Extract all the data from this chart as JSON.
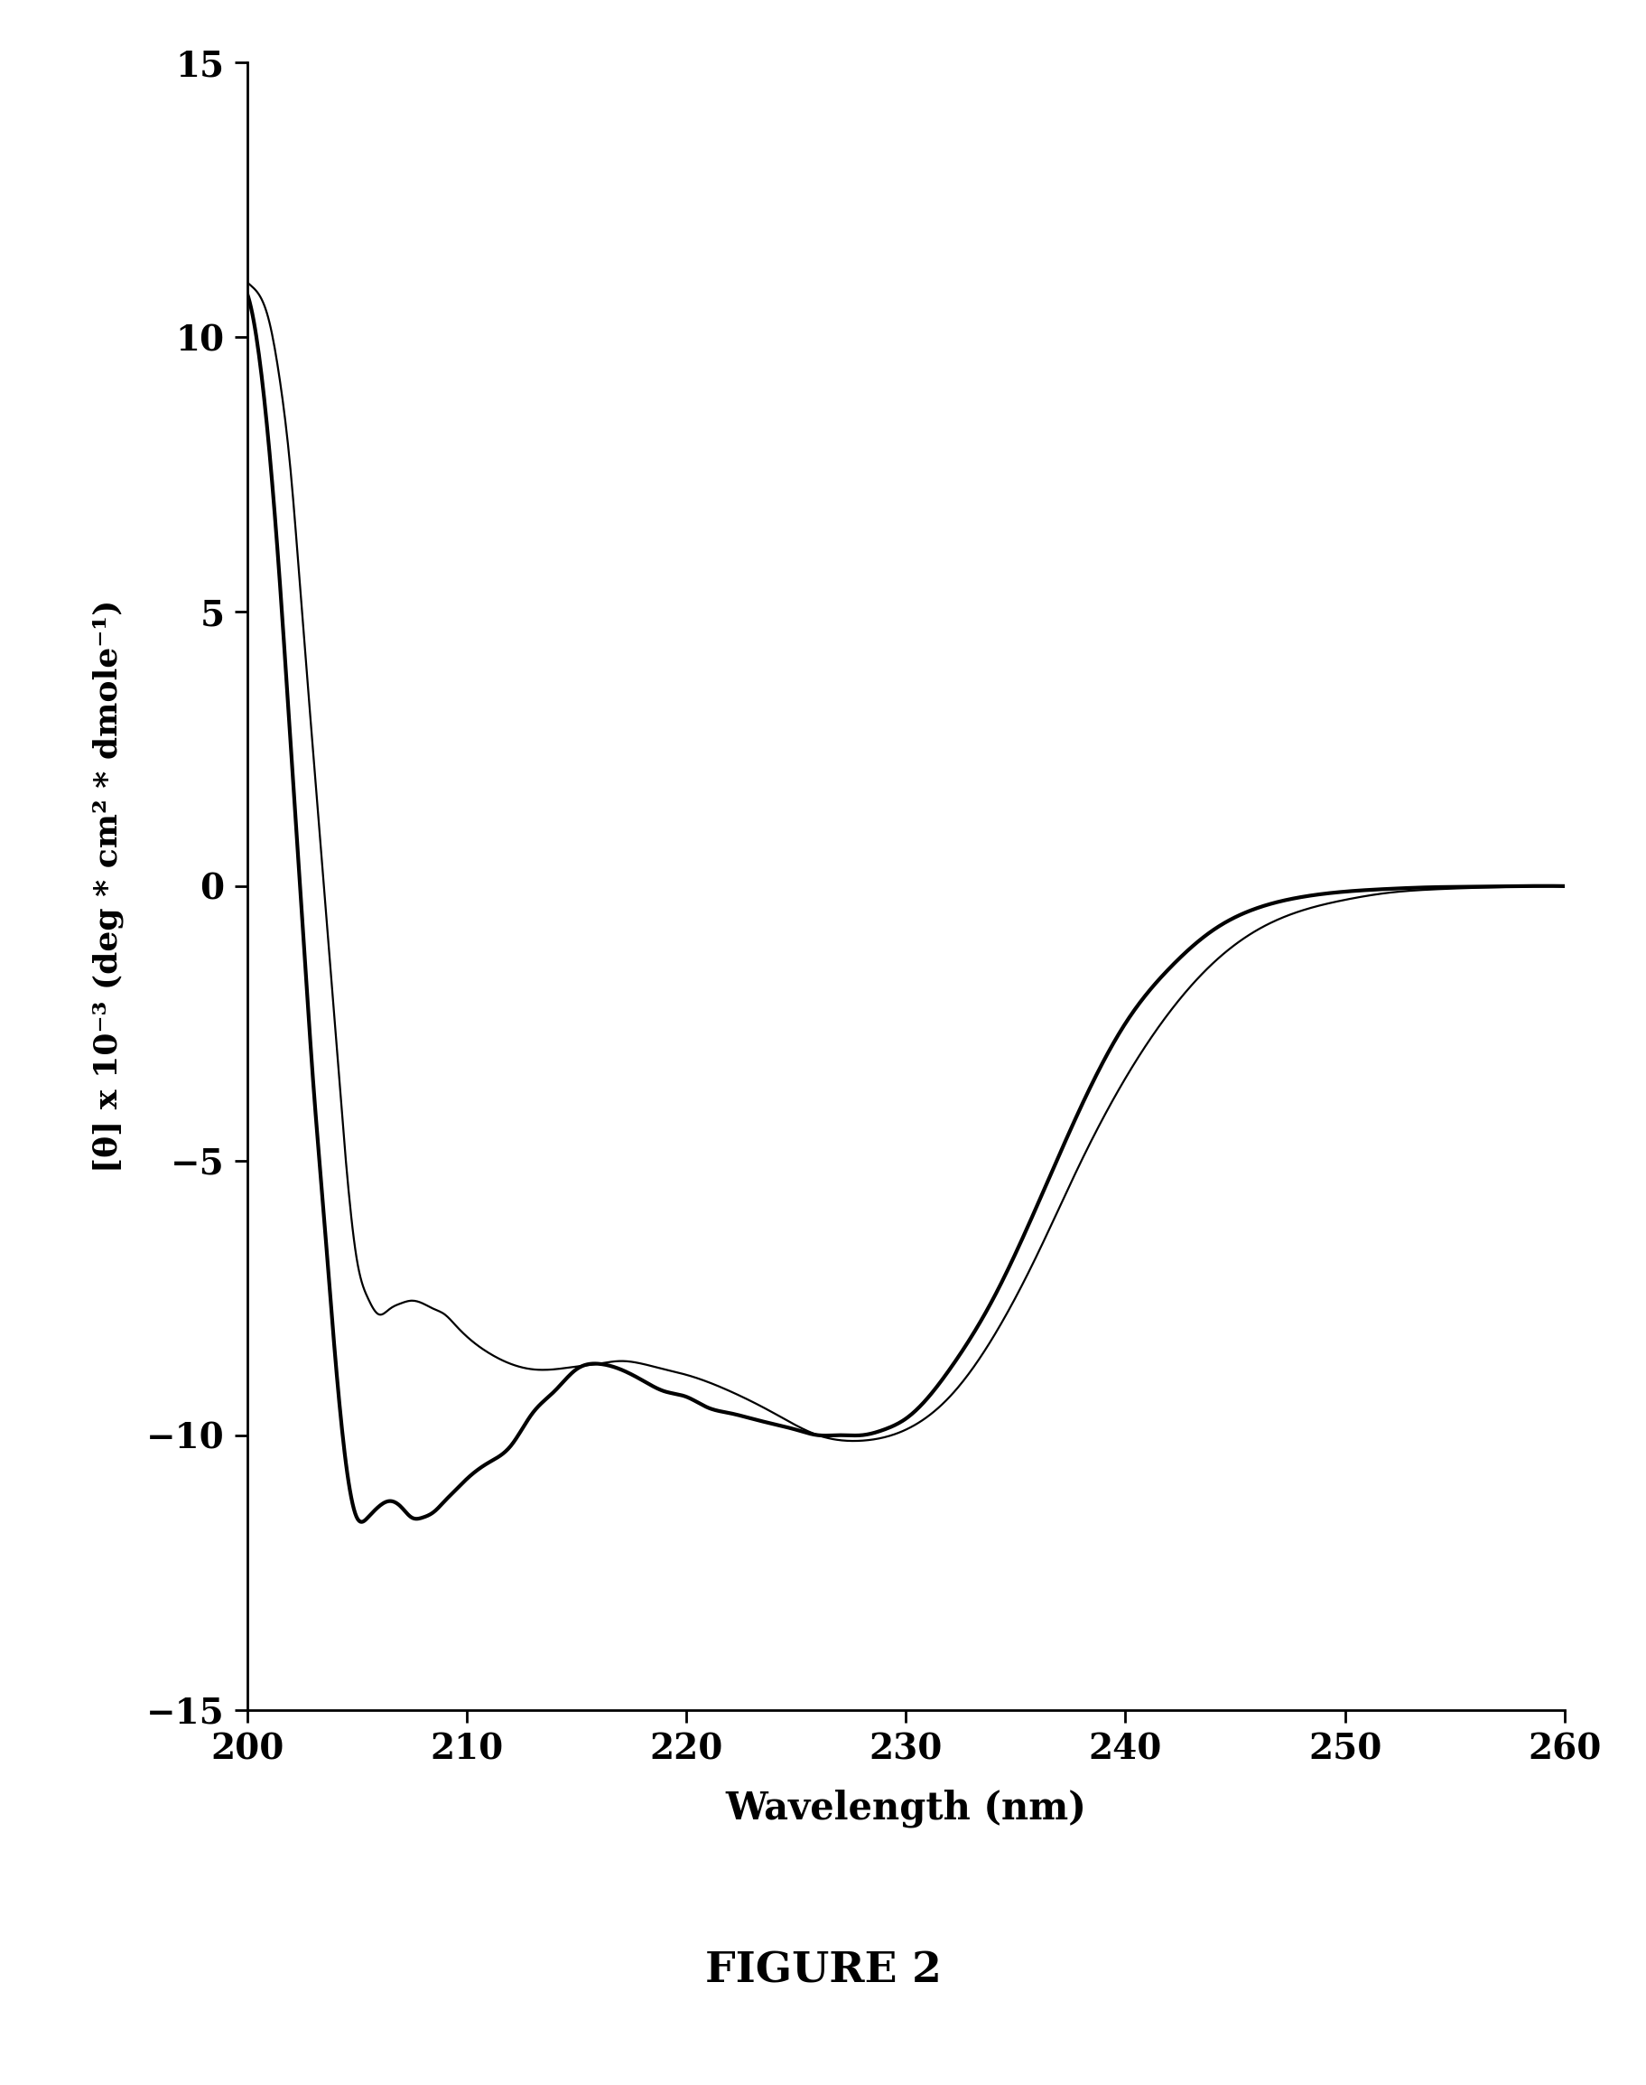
{
  "title": "FIGURE 2",
  "xlabel": "Wavelength (nm)",
  "ylabel": "[θ] x 10⁻³ (deg * cm² * dmole⁻¹)",
  "xlim": [
    200,
    260
  ],
  "ylim": [
    -15,
    15
  ],
  "xticks": [
    200,
    210,
    220,
    230,
    240,
    250,
    260
  ],
  "yticks": [
    -15,
    -10,
    -5,
    0,
    5,
    10,
    15
  ],
  "background_color": "#ffffff",
  "line_color": "#000000",
  "curve1_x": [
    200,
    200.5,
    201,
    201.5,
    202,
    202.5,
    203,
    203.5,
    204,
    204.5,
    205,
    205.5,
    206,
    206.5,
    207,
    207.5,
    208,
    208.5,
    209,
    209.5,
    210,
    211,
    212,
    213,
    214,
    215,
    216,
    217,
    218,
    219,
    220,
    222,
    224,
    226,
    228,
    230,
    232,
    234,
    236,
    238,
    240,
    242,
    244,
    246,
    248,
    250,
    252,
    254,
    256,
    258,
    260
  ],
  "curve1_y": [
    11.0,
    10.8,
    10.3,
    9.2,
    7.5,
    5.0,
    2.5,
    0.0,
    -2.5,
    -5.0,
    -6.8,
    -7.5,
    -7.8,
    -7.7,
    -7.6,
    -7.55,
    -7.6,
    -7.7,
    -7.8,
    -8.0,
    -8.2,
    -8.5,
    -8.7,
    -8.8,
    -8.8,
    -8.75,
    -8.7,
    -8.65,
    -8.7,
    -8.8,
    -8.9,
    -9.2,
    -9.6,
    -10.0,
    -10.1,
    -9.9,
    -9.3,
    -8.2,
    -6.7,
    -5.0,
    -3.5,
    -2.3,
    -1.4,
    -0.8,
    -0.45,
    -0.25,
    -0.12,
    -0.06,
    -0.03,
    -0.01,
    0.0
  ],
  "curve1_linewidth": 1.6,
  "curve2_x": [
    200,
    200.5,
    201,
    201.5,
    202,
    202.5,
    203,
    203.5,
    204,
    204.5,
    205,
    205.5,
    206,
    206.5,
    207,
    207.5,
    208,
    208.5,
    209,
    209.5,
    210,
    211,
    212,
    213,
    214,
    215,
    216,
    217,
    218,
    219,
    220,
    221,
    222,
    223,
    224,
    225,
    226,
    227,
    228,
    229,
    230,
    232,
    234,
    236,
    238,
    240,
    242,
    244,
    246,
    248,
    250,
    252,
    254,
    256,
    258,
    260
  ],
  "curve2_y": [
    10.8,
    9.8,
    8.0,
    5.5,
    2.5,
    -0.5,
    -3.5,
    -6.0,
    -8.5,
    -10.5,
    -11.5,
    -11.5,
    -11.3,
    -11.2,
    -11.3,
    -11.5,
    -11.5,
    -11.4,
    -11.2,
    -11.0,
    -10.8,
    -10.5,
    -10.2,
    -9.6,
    -9.2,
    -8.8,
    -8.7,
    -8.8,
    -9.0,
    -9.2,
    -9.3,
    -9.5,
    -9.6,
    -9.7,
    -9.8,
    -9.9,
    -10.0,
    -10.0,
    -10.0,
    -9.9,
    -9.7,
    -8.8,
    -7.5,
    -5.8,
    -4.0,
    -2.5,
    -1.5,
    -0.8,
    -0.4,
    -0.2,
    -0.1,
    -0.05,
    -0.02,
    -0.01,
    0.0,
    0.0
  ],
  "curve2_linewidth": 3.0
}
